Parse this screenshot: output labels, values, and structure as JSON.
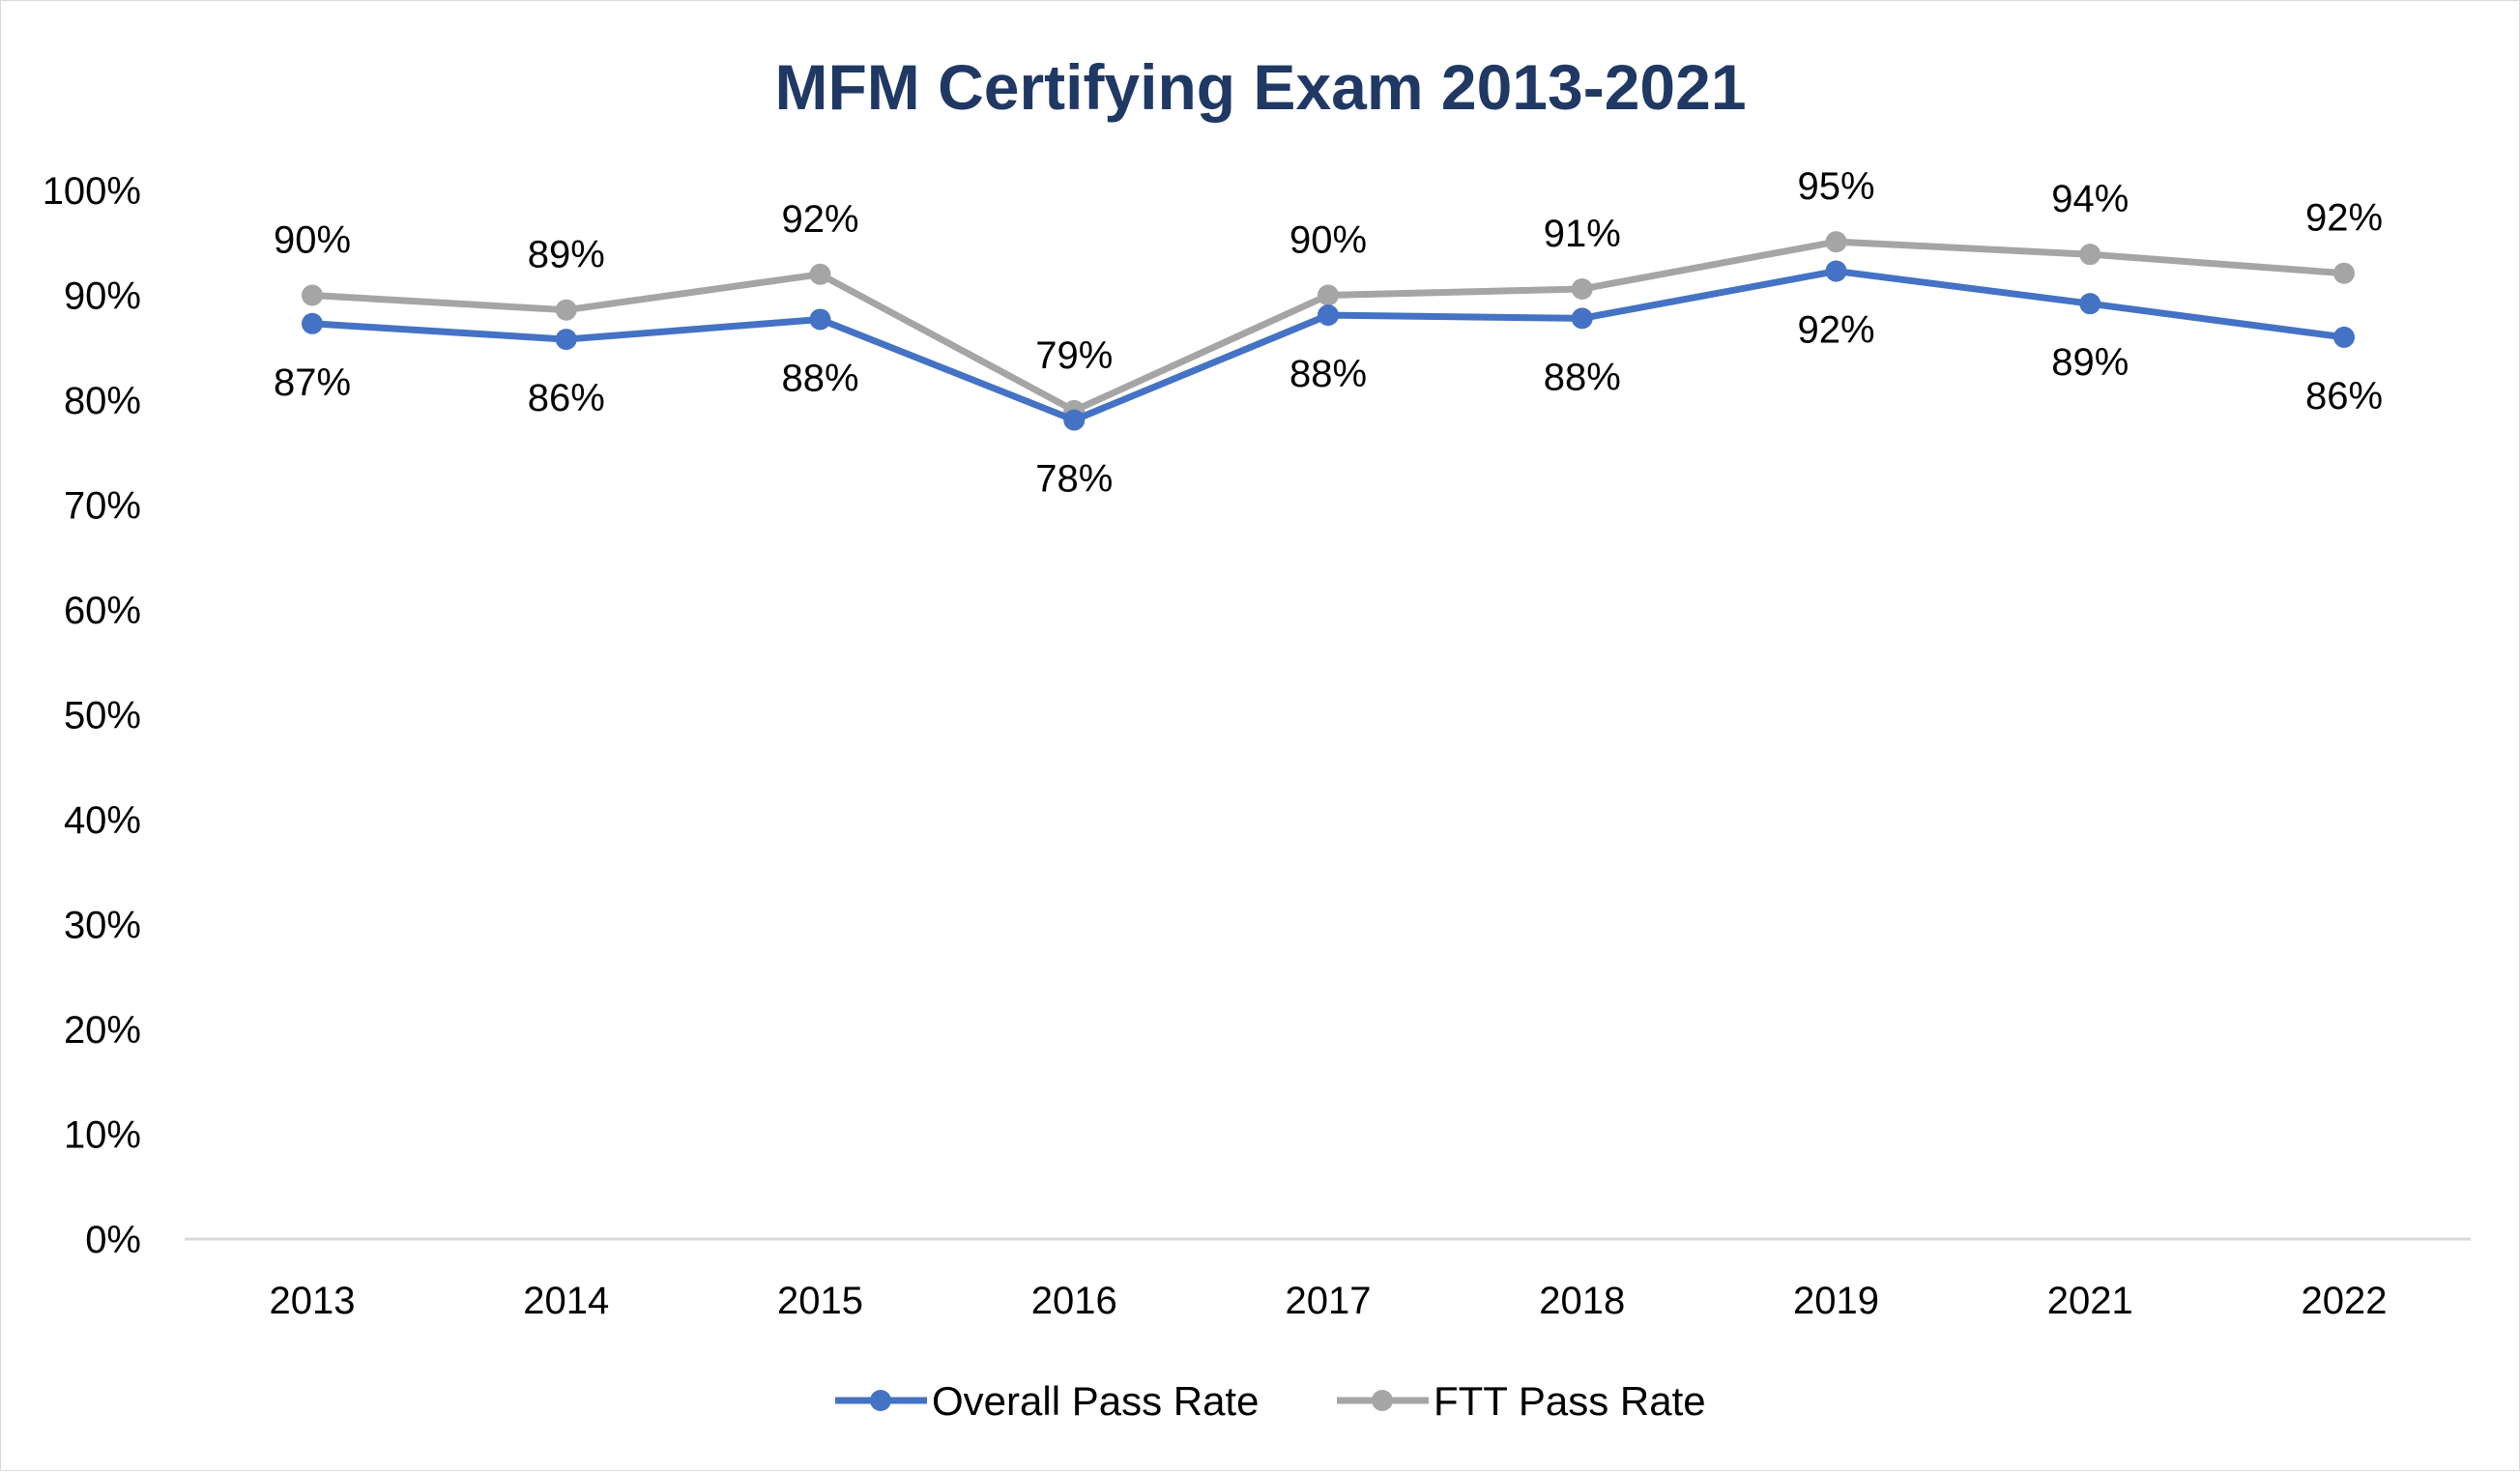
{
  "chart_data": {
    "type": "line",
    "title": "MFM Certifying Exam 2013-2021",
    "xlabel": "",
    "ylabel": "",
    "categories": [
      "2013",
      "2014",
      "2015",
      "2016",
      "2017",
      "2018",
      "2019",
      "2021",
      "2022"
    ],
    "ylim": [
      0,
      100
    ],
    "yticks": [
      0,
      10,
      20,
      30,
      40,
      50,
      60,
      70,
      80,
      90,
      100
    ],
    "ytick_labels": [
      "0%",
      "10%",
      "20%",
      "30%",
      "40%",
      "50%",
      "60%",
      "70%",
      "80%",
      "90%",
      "100%"
    ],
    "grid": false,
    "legend_position": "bottom",
    "series": [
      {
        "name": "Overall Pass Rate",
        "color": "#4472c4",
        "label_position": "below",
        "values": [
          87.3,
          85.8,
          87.7,
          78.1,
          88.1,
          87.8,
          92.3,
          89.2,
          86.0
        ],
        "labels": [
          "87%",
          "86%",
          "88%",
          "78%",
          "88%",
          "88%",
          "92%",
          "89%",
          "86%"
        ]
      },
      {
        "name": "FTT Pass Rate",
        "color": "#a5a5a5",
        "label_position": "above",
        "values": [
          90.0,
          88.6,
          92.0,
          79.0,
          90.0,
          90.6,
          95.1,
          93.9,
          92.1
        ],
        "labels": [
          "90%",
          "89%",
          "92%",
          "79%",
          "90%",
          "91%",
          "95%",
          "94%",
          "92%"
        ]
      }
    ]
  }
}
